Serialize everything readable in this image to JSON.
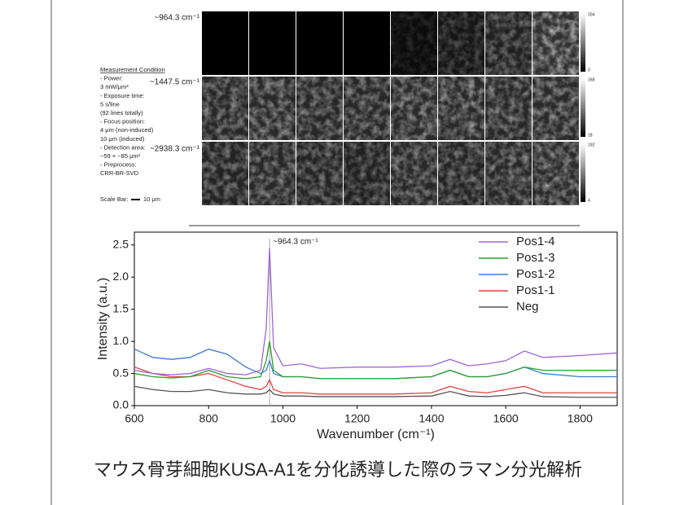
{
  "images": {
    "band_labels": [
      "~964.3 cm⁻¹",
      "~1447.5 cm⁻¹",
      "~2938.3 cm⁻¹"
    ],
    "colorbars": [
      [
        204,
        0
      ],
      [
        168,
        18
      ],
      [
        192,
        4
      ]
    ],
    "conditions": [
      "Measurement Condition",
      "- Power:",
      "3 mW/μm²",
      "- Exposure time:",
      "5 s/line",
      "(92 lines totally)",
      "- Focus position:",
      "4 μm (non-induced)",
      "10 μm (induced)",
      "- Detection area:",
      "~59 × ~85 μm²",
      "- Preprocess:",
      "CRR-BR-SVD"
    ],
    "scale_bar": "Scale Bar:",
    "scale_bar_length": "10 μm"
  },
  "chart_data": {
    "type": "line",
    "x_label": "Wavenumber (cm⁻¹)",
    "y_label": "Intensity (a.u.)",
    "annotation": {
      "text": "~964.3 cm⁻¹",
      "x": 964.3
    },
    "x": [
      600,
      650,
      700,
      750,
      800,
      850,
      900,
      940,
      955,
      964,
      975,
      1000,
      1050,
      1100,
      1200,
      1300,
      1400,
      1450,
      1500,
      1550,
      1600,
      1650,
      1700,
      1800,
      1900
    ],
    "series": [
      {
        "name": "Pos1-4",
        "color": "#a066d3",
        "values": [
          0.55,
          0.5,
          0.48,
          0.5,
          0.58,
          0.5,
          0.48,
          0.55,
          1.2,
          2.45,
          0.9,
          0.62,
          0.65,
          0.58,
          0.6,
          0.6,
          0.62,
          0.72,
          0.62,
          0.65,
          0.7,
          0.85,
          0.75,
          0.78,
          0.82
        ]
      },
      {
        "name": "Pos1-3",
        "color": "#2ca02c",
        "values": [
          0.5,
          0.45,
          0.43,
          0.45,
          0.55,
          0.45,
          0.42,
          0.45,
          0.7,
          1.0,
          0.55,
          0.45,
          0.45,
          0.42,
          0.42,
          0.42,
          0.45,
          0.55,
          0.45,
          0.45,
          0.5,
          0.6,
          0.55,
          0.55,
          0.55
        ]
      },
      {
        "name": "Pos1-2",
        "color": "#3a7bd5",
        "values": [
          0.88,
          0.75,
          0.72,
          0.75,
          0.88,
          0.8,
          0.6,
          0.5,
          0.55,
          0.7,
          0.5,
          0.45,
          0.45,
          0.42,
          0.42,
          0.42,
          0.45,
          0.55,
          0.45,
          0.45,
          0.5,
          0.6,
          0.5,
          0.45,
          0.45
        ]
      },
      {
        "name": "Pos1-1",
        "color": "#e0443e",
        "values": [
          0.6,
          0.5,
          0.45,
          0.45,
          0.5,
          0.4,
          0.3,
          0.25,
          0.3,
          0.4,
          0.25,
          0.2,
          0.2,
          0.18,
          0.18,
          0.18,
          0.2,
          0.3,
          0.22,
          0.2,
          0.25,
          0.3,
          0.2,
          0.2,
          0.2
        ]
      },
      {
        "name": "Neg",
        "color": "#555555",
        "values": [
          0.3,
          0.25,
          0.22,
          0.22,
          0.25,
          0.2,
          0.18,
          0.18,
          0.2,
          0.25,
          0.18,
          0.15,
          0.15,
          0.14,
          0.14,
          0.14,
          0.15,
          0.22,
          0.15,
          0.14,
          0.16,
          0.2,
          0.14,
          0.13,
          0.13
        ]
      }
    ],
    "xlim": [
      600,
      1900
    ],
    "xticks": [
      600,
      800,
      1000,
      1200,
      1400,
      1600,
      1800
    ],
    "ylim": [
      0,
      2.7
    ],
    "yticks": [
      {
        "value": 0,
        "label": "0.0"
      },
      0.5,
      {
        "value": 1,
        "label": "1.0"
      },
      1.5,
      {
        "value": 2,
        "label": "2.0"
      },
      2.5
    ],
    "legend": "upper right"
  },
  "caption": "マウス骨芽細胞KUSA-A1を分化誘導した際のラマン分光解析"
}
